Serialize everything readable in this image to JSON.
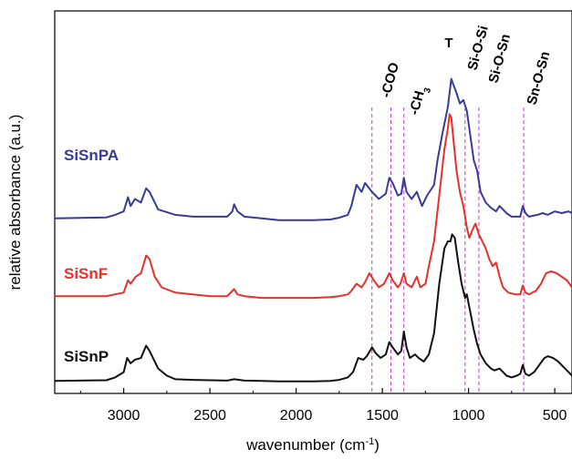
{
  "chart_data": {
    "type": "line",
    "xlabel": "wavenumber (cm",
    "xlabel_sup": "-1",
    "xlabel_end": ")",
    "ylabel": "relative absorbance (a.u.)",
    "xlim": [
      3400,
      400
    ],
    "x_reversed": true,
    "y_ticks_shown": false,
    "ylim": [
      0,
      1
    ],
    "x_ticks": [
      3000,
      2500,
      2000,
      1500,
      1000,
      500
    ],
    "x_tick_labels": [
      "3000",
      "2500",
      "2000",
      "1500",
      "1000",
      "500"
    ],
    "grid": false,
    "series": [
      {
        "name": "SiSnPA",
        "color": "#3a3a99",
        "points": [
          [
            3400,
            0.485
          ],
          [
            3100,
            0.488
          ],
          [
            3050,
            0.495
          ],
          [
            3000,
            0.505
          ],
          [
            2975,
            0.545
          ],
          [
            2960,
            0.52
          ],
          [
            2935,
            0.54
          ],
          [
            2900,
            0.53
          ],
          [
            2870,
            0.57
          ],
          [
            2850,
            0.56
          ],
          [
            2800,
            0.51
          ],
          [
            2700,
            0.495
          ],
          [
            2600,
            0.49
          ],
          [
            2500,
            0.49
          ],
          [
            2400,
            0.49
          ],
          [
            2370,
            0.505
          ],
          [
            2360,
            0.525
          ],
          [
            2340,
            0.505
          ],
          [
            2300,
            0.49
          ],
          [
            2200,
            0.485
          ],
          [
            2100,
            0.48
          ],
          [
            2000,
            0.48
          ],
          [
            1900,
            0.48
          ],
          [
            1800,
            0.482
          ],
          [
            1750,
            0.487
          ],
          [
            1700,
            0.495
          ],
          [
            1680,
            0.52
          ],
          [
            1650,
            0.58
          ],
          [
            1620,
            0.56
          ],
          [
            1600,
            0.585
          ],
          [
            1560,
            0.56
          ],
          [
            1520,
            0.54
          ],
          [
            1480,
            0.555
          ],
          [
            1460,
            0.6
          ],
          [
            1440,
            0.585
          ],
          [
            1410,
            0.55
          ],
          [
            1390,
            0.555
          ],
          [
            1375,
            0.6
          ],
          [
            1360,
            0.56
          ],
          [
            1330,
            0.54
          ],
          [
            1300,
            0.56
          ],
          [
            1270,
            0.52
          ],
          [
            1240,
            0.55
          ],
          [
            1200,
            0.58
          ],
          [
            1180,
            0.65
          ],
          [
            1150,
            0.73
          ],
          [
            1120,
            0.8
          ],
          [
            1100,
            0.88
          ],
          [
            1085,
            0.86
          ],
          [
            1070,
            0.84
          ],
          [
            1050,
            0.81
          ],
          [
            1030,
            0.82
          ],
          [
            1010,
            0.79
          ],
          [
            990,
            0.72
          ],
          [
            970,
            0.65
          ],
          [
            950,
            0.62
          ],
          [
            930,
            0.56
          ],
          [
            900,
            0.53
          ],
          [
            870,
            0.515
          ],
          [
            840,
            0.505
          ],
          [
            820,
            0.52
          ],
          [
            800,
            0.51
          ],
          [
            780,
            0.5
          ],
          [
            750,
            0.49
          ],
          [
            720,
            0.49
          ],
          [
            700,
            0.49
          ],
          [
            685,
            0.52
          ],
          [
            670,
            0.5
          ],
          [
            650,
            0.49
          ],
          [
            600,
            0.495
          ],
          [
            570,
            0.5
          ],
          [
            540,
            0.495
          ],
          [
            500,
            0.505
          ],
          [
            460,
            0.5
          ],
          [
            420,
            0.505
          ],
          [
            400,
            0.5
          ]
        ]
      },
      {
        "name": "SiSnF",
        "color": "#e8302a",
        "points": [
          [
            3400,
            0.265
          ],
          [
            3100,
            0.265
          ],
          [
            3050,
            0.27
          ],
          [
            3000,
            0.275
          ],
          [
            2975,
            0.31
          ],
          [
            2960,
            0.3
          ],
          [
            2930,
            0.32
          ],
          [
            2900,
            0.33
          ],
          [
            2870,
            0.38
          ],
          [
            2850,
            0.37
          ],
          [
            2820,
            0.32
          ],
          [
            2780,
            0.29
          ],
          [
            2700,
            0.275
          ],
          [
            2600,
            0.27
          ],
          [
            2500,
            0.265
          ],
          [
            2400,
            0.265
          ],
          [
            2360,
            0.285
          ],
          [
            2340,
            0.27
          ],
          [
            2300,
            0.265
          ],
          [
            2200,
            0.26
          ],
          [
            2100,
            0.26
          ],
          [
            2000,
            0.26
          ],
          [
            1900,
            0.26
          ],
          [
            1800,
            0.262
          ],
          [
            1750,
            0.265
          ],
          [
            1700,
            0.27
          ],
          [
            1680,
            0.28
          ],
          [
            1650,
            0.3
          ],
          [
            1620,
            0.29
          ],
          [
            1600,
            0.305
          ],
          [
            1575,
            0.33
          ],
          [
            1550,
            0.31
          ],
          [
            1520,
            0.29
          ],
          [
            1490,
            0.3
          ],
          [
            1460,
            0.33
          ],
          [
            1440,
            0.31
          ],
          [
            1410,
            0.29
          ],
          [
            1395,
            0.3
          ],
          [
            1375,
            0.33
          ],
          [
            1360,
            0.3
          ],
          [
            1330,
            0.29
          ],
          [
            1300,
            0.32
          ],
          [
            1280,
            0.29
          ],
          [
            1250,
            0.3
          ],
          [
            1230,
            0.35
          ],
          [
            1200,
            0.42
          ],
          [
            1170,
            0.55
          ],
          [
            1140,
            0.68
          ],
          [
            1120,
            0.74
          ],
          [
            1110,
            0.78
          ],
          [
            1100,
            0.77
          ],
          [
            1090,
            0.72
          ],
          [
            1070,
            0.62
          ],
          [
            1050,
            0.56
          ],
          [
            1030,
            0.52
          ],
          [
            1010,
            0.46
          ],
          [
            995,
            0.43
          ],
          [
            980,
            0.45
          ],
          [
            960,
            0.47
          ],
          [
            940,
            0.44
          ],
          [
            920,
            0.42
          ],
          [
            900,
            0.4
          ],
          [
            880,
            0.37
          ],
          [
            860,
            0.35
          ],
          [
            840,
            0.36
          ],
          [
            820,
            0.32
          ],
          [
            800,
            0.29
          ],
          [
            770,
            0.275
          ],
          [
            730,
            0.27
          ],
          [
            700,
            0.27
          ],
          [
            685,
            0.295
          ],
          [
            670,
            0.275
          ],
          [
            650,
            0.27
          ],
          [
            610,
            0.28
          ],
          [
            580,
            0.3
          ],
          [
            550,
            0.33
          ],
          [
            520,
            0.335
          ],
          [
            490,
            0.33
          ],
          [
            460,
            0.32
          ],
          [
            430,
            0.31
          ],
          [
            400,
            0.29
          ]
        ]
      },
      {
        "name": "SiSnP",
        "color": "#111111",
        "points": [
          [
            3400,
            0.025
          ],
          [
            3100,
            0.027
          ],
          [
            3050,
            0.035
          ],
          [
            3000,
            0.05
          ],
          [
            2980,
            0.09
          ],
          [
            2960,
            0.075
          ],
          [
            2935,
            0.085
          ],
          [
            2900,
            0.09
          ],
          [
            2870,
            0.125
          ],
          [
            2850,
            0.11
          ],
          [
            2800,
            0.06
          ],
          [
            2750,
            0.04
          ],
          [
            2700,
            0.03
          ],
          [
            2600,
            0.028
          ],
          [
            2500,
            0.027
          ],
          [
            2400,
            0.026
          ],
          [
            2360,
            0.03
          ],
          [
            2300,
            0.026
          ],
          [
            2200,
            0.025
          ],
          [
            2100,
            0.024
          ],
          [
            2000,
            0.024
          ],
          [
            1900,
            0.024
          ],
          [
            1800,
            0.025
          ],
          [
            1750,
            0.028
          ],
          [
            1700,
            0.035
          ],
          [
            1670,
            0.05
          ],
          [
            1640,
            0.09
          ],
          [
            1610,
            0.085
          ],
          [
            1590,
            0.095
          ],
          [
            1560,
            0.12
          ],
          [
            1540,
            0.105
          ],
          [
            1510,
            0.09
          ],
          [
            1480,
            0.1
          ],
          [
            1460,
            0.135
          ],
          [
            1440,
            0.12
          ],
          [
            1410,
            0.1
          ],
          [
            1390,
            0.11
          ],
          [
            1375,
            0.165
          ],
          [
            1360,
            0.12
          ],
          [
            1340,
            0.09
          ],
          [
            1310,
            0.1
          ],
          [
            1290,
            0.09
          ],
          [
            1260,
            0.08
          ],
          [
            1230,
            0.1
          ],
          [
            1200,
            0.16
          ],
          [
            1170,
            0.3
          ],
          [
            1140,
            0.4
          ],
          [
            1120,
            0.42
          ],
          [
            1105,
            0.42
          ],
          [
            1095,
            0.44
          ],
          [
            1080,
            0.43
          ],
          [
            1060,
            0.36
          ],
          [
            1040,
            0.3
          ],
          [
            1020,
            0.26
          ],
          [
            1010,
            0.27
          ],
          [
            990,
            0.22
          ],
          [
            970,
            0.17
          ],
          [
            950,
            0.13
          ],
          [
            930,
            0.1
          ],
          [
            900,
            0.075
          ],
          [
            870,
            0.06
          ],
          [
            850,
            0.055
          ],
          [
            820,
            0.06
          ],
          [
            800,
            0.05
          ],
          [
            780,
            0.04
          ],
          [
            750,
            0.035
          ],
          [
            720,
            0.04
          ],
          [
            700,
            0.045
          ],
          [
            685,
            0.07
          ],
          [
            670,
            0.045
          ],
          [
            650,
            0.04
          ],
          [
            620,
            0.05
          ],
          [
            590,
            0.07
          ],
          [
            560,
            0.09
          ],
          [
            540,
            0.095
          ],
          [
            510,
            0.09
          ],
          [
            480,
            0.08
          ],
          [
            450,
            0.065
          ],
          [
            420,
            0.05
          ],
          [
            400,
            0.04
          ]
        ]
      }
    ],
    "series_labels": [
      {
        "text": "SiSnPA",
        "color": "#3a3a99"
      },
      {
        "text": "SiSnF",
        "color": "#e8302a"
      },
      {
        "text": "SiSnP",
        "color": "#111111"
      }
    ],
    "vertical_markers": {
      "color": "#cc33cc",
      "style": "dashed",
      "x": [
        1560,
        1450,
        1375,
        1020,
        940,
        680
      ]
    },
    "annotations": [
      {
        "text": "-COO",
        "rotated": true
      },
      {
        "text": "-CH",
        "sub": "3",
        "rotated": true
      },
      {
        "text": "T",
        "rotated": false
      },
      {
        "text": "Si-O-Si",
        "rotated": true
      },
      {
        "text": "Si-O-Sn",
        "rotated": true
      },
      {
        "text": "Sn-O-Sn",
        "rotated": true
      }
    ]
  }
}
